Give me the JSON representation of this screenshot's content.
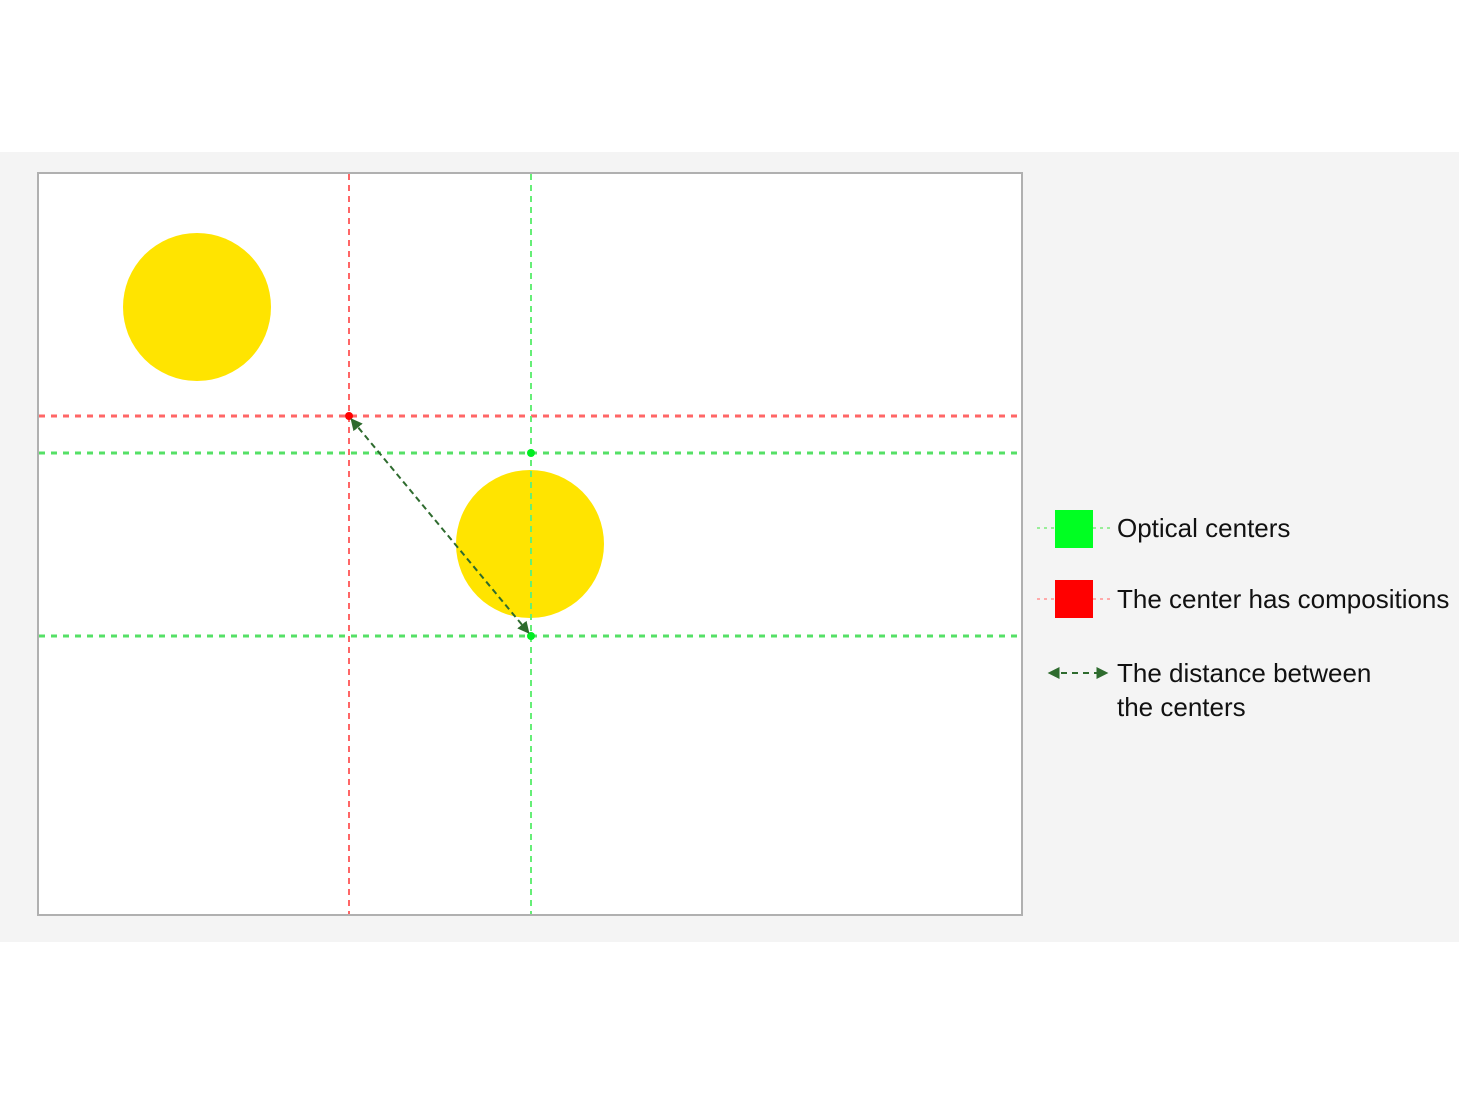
{
  "colors": {
    "background": "#ffffff",
    "band": "#f4f4f4",
    "canvas_border": "#b0b0b0",
    "optical_center": "#00ff22",
    "optical_line": "#55ee66",
    "composition_center": "#ff0000",
    "composition_line": "#ff5555",
    "distance_arrow": "#2e6b2e",
    "circle_fill": "#ffe400"
  },
  "legend": {
    "optical": {
      "label": "Optical centers",
      "icon": "green-square-icon"
    },
    "composition": {
      "label": "The center has compositions",
      "icon": "red-square-icon"
    },
    "distance": {
      "label": "The distance between\nthe centers",
      "icon": "double-headed-dashed-arrow-icon"
    }
  }
}
